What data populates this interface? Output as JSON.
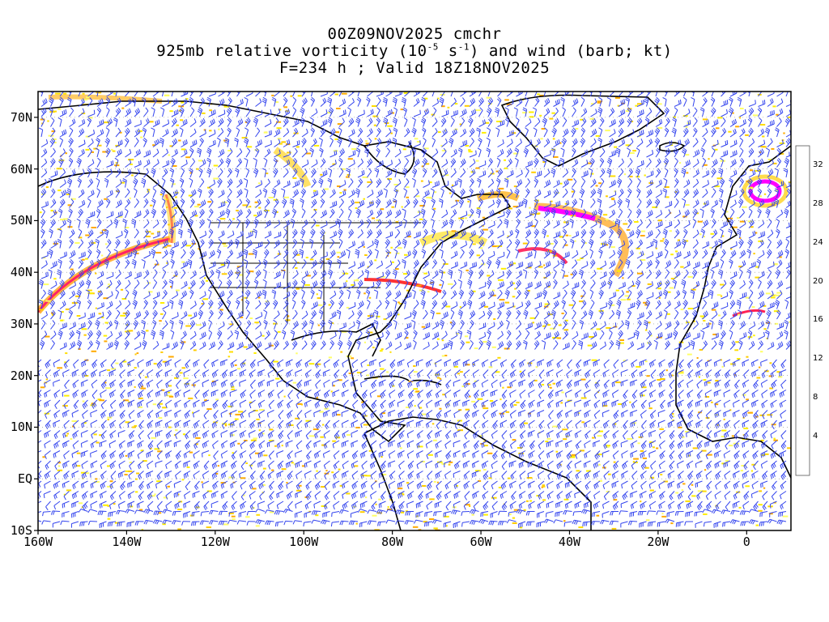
{
  "title": {
    "line1": "00Z09NOV2025 cmchr",
    "line2_pre": "925mb relative vorticity (10",
    "line2_exp1": "-5",
    "line2_mid": " s",
    "line2_exp2": "-1",
    "line2_post": ") and wind (barb; kt)",
    "line3": "F=234 h ; Valid 18Z18NOV2025"
  },
  "map": {
    "lon_range": [
      -160,
      10
    ],
    "lat_range": [
      -10,
      75
    ],
    "lat_labels": [
      "70N",
      "60N",
      "50N",
      "40N",
      "30N",
      "20N",
      "10N",
      "EQ",
      "10S"
    ],
    "lat_values": [
      70,
      60,
      50,
      40,
      30,
      20,
      10,
      0,
      -10
    ],
    "lon_labels": [
      "160W",
      "140W",
      "120W",
      "100W",
      "80W",
      "60W",
      "40W",
      "20W",
      "0"
    ],
    "lon_values": [
      -160,
      -140,
      -120,
      -100,
      -80,
      -60,
      -40,
      -20,
      0
    ],
    "barb_color": "#3344ee",
    "coast_color": "#000000"
  },
  "colorbar": {
    "labels": [
      "4",
      "8",
      "12",
      "16",
      "20",
      "24",
      "28",
      "32"
    ],
    "levels": [
      2,
      4,
      6,
      8,
      10,
      12,
      14,
      16,
      18,
      20,
      22,
      24,
      26,
      28,
      30,
      32,
      34
    ],
    "colors": [
      "#ffffff",
      "#ffff66",
      "#ffee00",
      "#ffdd00",
      "#ffcc00",
      "#ffbb00",
      "#ffaa00",
      "#ff9900",
      "#ff7700",
      "#ff5500",
      "#ff3300",
      "#ff0000",
      "#ff2255",
      "#ff3388",
      "#ff44bb",
      "#ff22dd",
      "#ff00ff"
    ]
  }
}
